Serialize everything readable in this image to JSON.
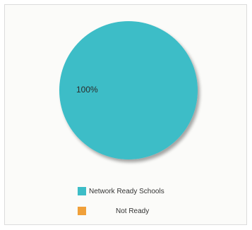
{
  "chart_data": {
    "type": "pie",
    "title": "",
    "slices": [
      {
        "label": "Network Ready Schools",
        "value": 100,
        "display": "100%",
        "color": "#3dbdc7"
      },
      {
        "label": "Not Ready",
        "value": 0,
        "display": "",
        "color": "#f0a03a"
      }
    ],
    "legend": {
      "position": "bottom",
      "entries": [
        "Network Ready Schools",
        "Not Ready"
      ]
    }
  }
}
